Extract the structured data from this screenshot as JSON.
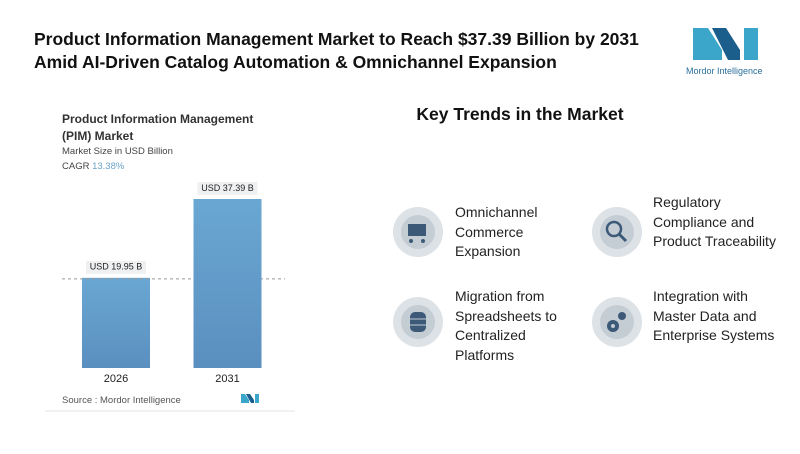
{
  "header": {
    "title": "Product Information Management Market to Reach $37.39 Billion by 2031 Amid AI-Driven Catalog Automation & Omnichannel Expansion",
    "logo_text": "Mordor Intelligence"
  },
  "chart_data": {
    "type": "bar",
    "title": "Product Information Management (PIM) Market",
    "subtitle": "Market Size in USD Billion",
    "cagr_label": "CAGR",
    "cagr": "13.38%",
    "categories": [
      "2026",
      "2031"
    ],
    "values": [
      19.95,
      37.39
    ],
    "value_labels": [
      "USD 19.95 B",
      "USD 37.39 B"
    ],
    "color": "#5e9ac9",
    "source": "Source : Mordor Intelligence"
  },
  "trends": {
    "title": "Key Trends in the Market",
    "items": [
      {
        "label": "Omnichannel Commerce Expansion"
      },
      {
        "label": "Regulatory Compliance and Product Traceability"
      },
      {
        "label": "Migration from Spreadsheets to Centralized Platforms"
      },
      {
        "label": "Integration with Master Data and Enterprise Systems"
      }
    ]
  }
}
